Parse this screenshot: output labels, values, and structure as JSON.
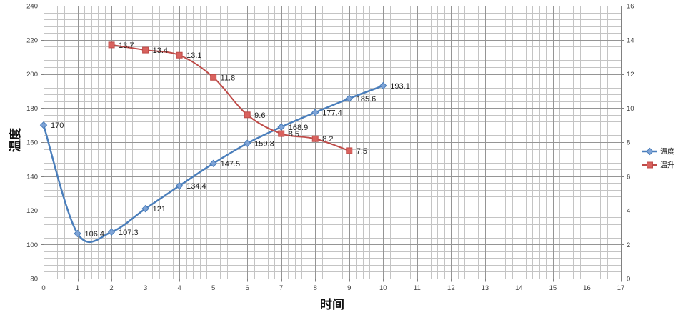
{
  "chart_data": {
    "type": "line",
    "smooth": true,
    "xlabel": "时间",
    "ylabel": "温度",
    "xlim": [
      0,
      17
    ],
    "ylim": [
      80,
      240
    ],
    "y2lim": [
      0,
      16
    ],
    "x_ticks": [
      0,
      1,
      2,
      3,
      4,
      5,
      6,
      7,
      8,
      9,
      10,
      11,
      12,
      13,
      14,
      15,
      16,
      17
    ],
    "y_ticks": [
      80,
      100,
      120,
      140,
      160,
      180,
      200,
      220,
      240
    ],
    "y2_ticks": [
      0,
      2,
      4,
      6,
      8,
      10,
      12,
      14,
      16
    ],
    "grid": {
      "major": true,
      "minor": true
    },
    "legend": "right",
    "data_labels": true,
    "series": [
      {
        "name": "温度",
        "axis": "left",
        "color": "#4A7EBB",
        "marker": "diamond",
        "marker_fill": "#7EA3D6",
        "x": [
          0,
          1,
          2,
          3,
          4,
          5,
          6,
          7,
          8,
          9,
          10
        ],
        "values": [
          170,
          106.4,
          107.3,
          121,
          134.4,
          147.5,
          159.3,
          168.9,
          177.4,
          185.6,
          193.1
        ]
      },
      {
        "name": "温升",
        "axis": "right",
        "color": "#BE4B48",
        "marker": "square",
        "marker_fill": "#D9625E",
        "x": [
          2,
          3,
          4,
          5,
          6,
          7,
          8,
          9
        ],
        "values": [
          13.7,
          13.4,
          13.1,
          11.8,
          9.6,
          8.5,
          8.2,
          7.5
        ]
      }
    ]
  }
}
